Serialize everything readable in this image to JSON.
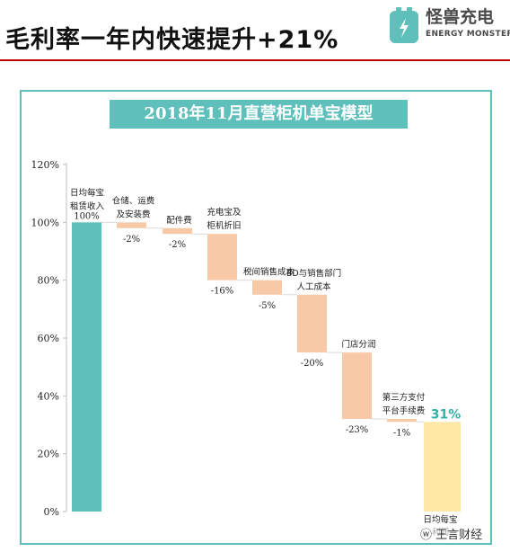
{
  "header": {
    "title": "毛利率一年内快速提升+21%",
    "brand_name": "怪兽充电",
    "brand_sub": "ENERGY MONSTER"
  },
  "banner": "2018年11月直营柜机单宝模型",
  "watermark": "ⓦ 王言财经",
  "colors": {
    "teal": "#5fbfba",
    "peach": "#f8c9a7",
    "result": "#ffe8a6",
    "result_label": "#2fb3a8",
    "rule": "#c00000"
  },
  "chart_data": {
    "type": "waterfall",
    "y_axis": {
      "min": 0,
      "max": 120,
      "step": 20,
      "suffix": "%"
    },
    "ticks": [
      "0%",
      "20%",
      "40%",
      "60%",
      "80%",
      "100%",
      "120%"
    ],
    "steps": [
      {
        "lines": [
          "日均每宝",
          "租赁收入"
        ],
        "value": 100,
        "kind": "total",
        "value_label": "100%"
      },
      {
        "lines": [
          "仓储、运费",
          "及安装费"
        ],
        "value": -2,
        "kind": "decrease",
        "value_label": "-2%"
      },
      {
        "lines": [
          "配件费"
        ],
        "value": -2,
        "kind": "decrease",
        "value_label": "-2%"
      },
      {
        "lines": [
          "充电宝及",
          "柜机折旧"
        ],
        "value": -16,
        "kind": "decrease",
        "value_label": "-16%"
      },
      {
        "lines": [
          "税间销售成本"
        ],
        "value": -5,
        "kind": "decrease",
        "value_label": "-5%"
      },
      {
        "lines": [
          "BD与销售部门",
          "人工成本"
        ],
        "value": -20,
        "kind": "decrease",
        "value_label": "-20%"
      },
      {
        "lines": [
          "门店分润"
        ],
        "value": -23,
        "kind": "decrease",
        "value_label": "-23%"
      },
      {
        "lines": [
          "第三方支付",
          "平台手续费"
        ],
        "value": -1,
        "kind": "decrease",
        "value_label": "-1%"
      },
      {
        "lines": [
          "日均每宝",
          "利润"
        ],
        "value": 31,
        "kind": "result",
        "value_label": "31%"
      }
    ]
  }
}
